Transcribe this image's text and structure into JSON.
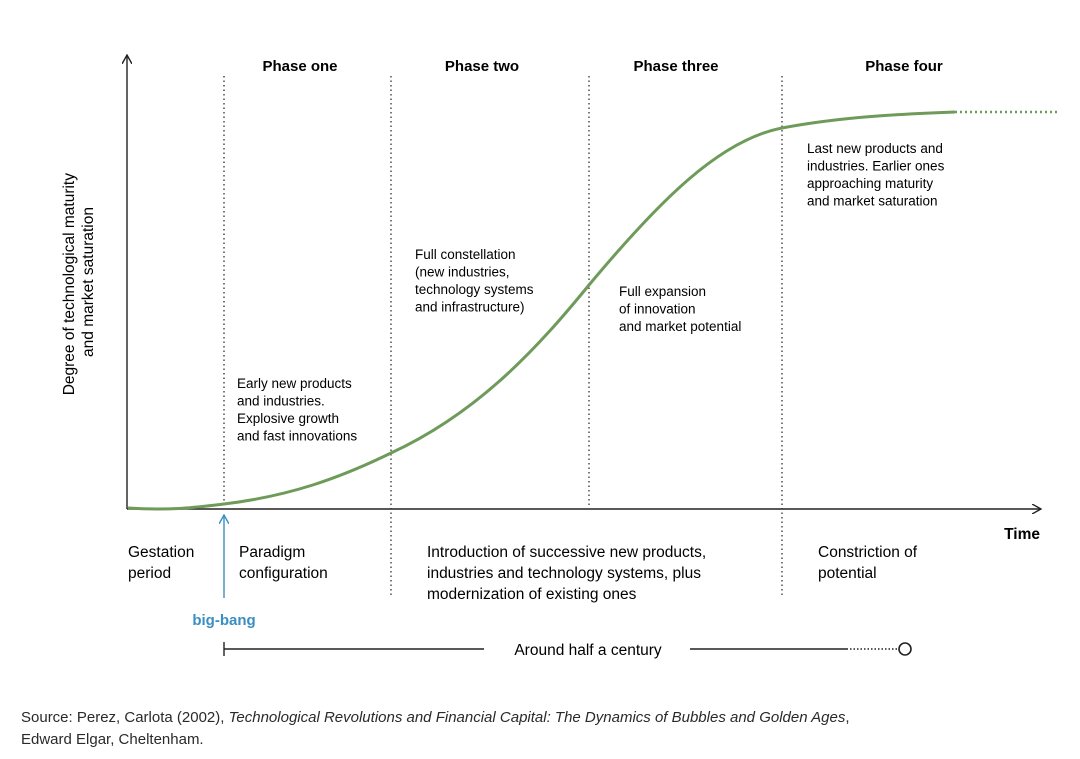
{
  "phases": [
    {
      "title": "Phase one"
    },
    {
      "title": "Phase two"
    },
    {
      "title": "Phase three"
    },
    {
      "title": "Phase four"
    }
  ],
  "y_axis_label": [
    "Degree of technological maturity",
    "and market saturation"
  ],
  "x_axis_label": "Time",
  "curve_descriptions": {
    "phase_one": [
      "Early new products",
      "and industries.",
      "Explosive growth",
      "and fast innovations"
    ],
    "phase_two": [
      "Full constellation",
      "(new industries,",
      "technology systems",
      "and infrastructure)"
    ],
    "phase_three": [
      "Full expansion",
      "of innovation",
      "and market potential"
    ],
    "phase_four": [
      "Last new products and",
      "industries. Earlier ones",
      "approaching maturity",
      "and market saturation"
    ]
  },
  "bottom_labels": {
    "gestation": [
      "Gestation",
      "period"
    ],
    "paradigm": [
      "Paradigm",
      "configuration"
    ],
    "introduction": [
      "Introduction of successive new products,",
      "industries and technology systems, plus",
      "modernization of existing ones"
    ],
    "constriction": [
      "Constriction of",
      "potential"
    ]
  },
  "big_bang_label": "big-bang",
  "duration_label": "Around half a century",
  "source": {
    "prefix": "Source: Perez, Carlota (2002), ",
    "title": "Technological Revolutions and Financial Capital: The Dynamics of Bubbles and Golden Ages",
    "suffix": ",",
    "line2": "Edward Elgar, Cheltenham."
  },
  "colors": {
    "curve": "#6e9a5a",
    "big_bang": "#3a8fc1",
    "axis": "#222222"
  }
}
